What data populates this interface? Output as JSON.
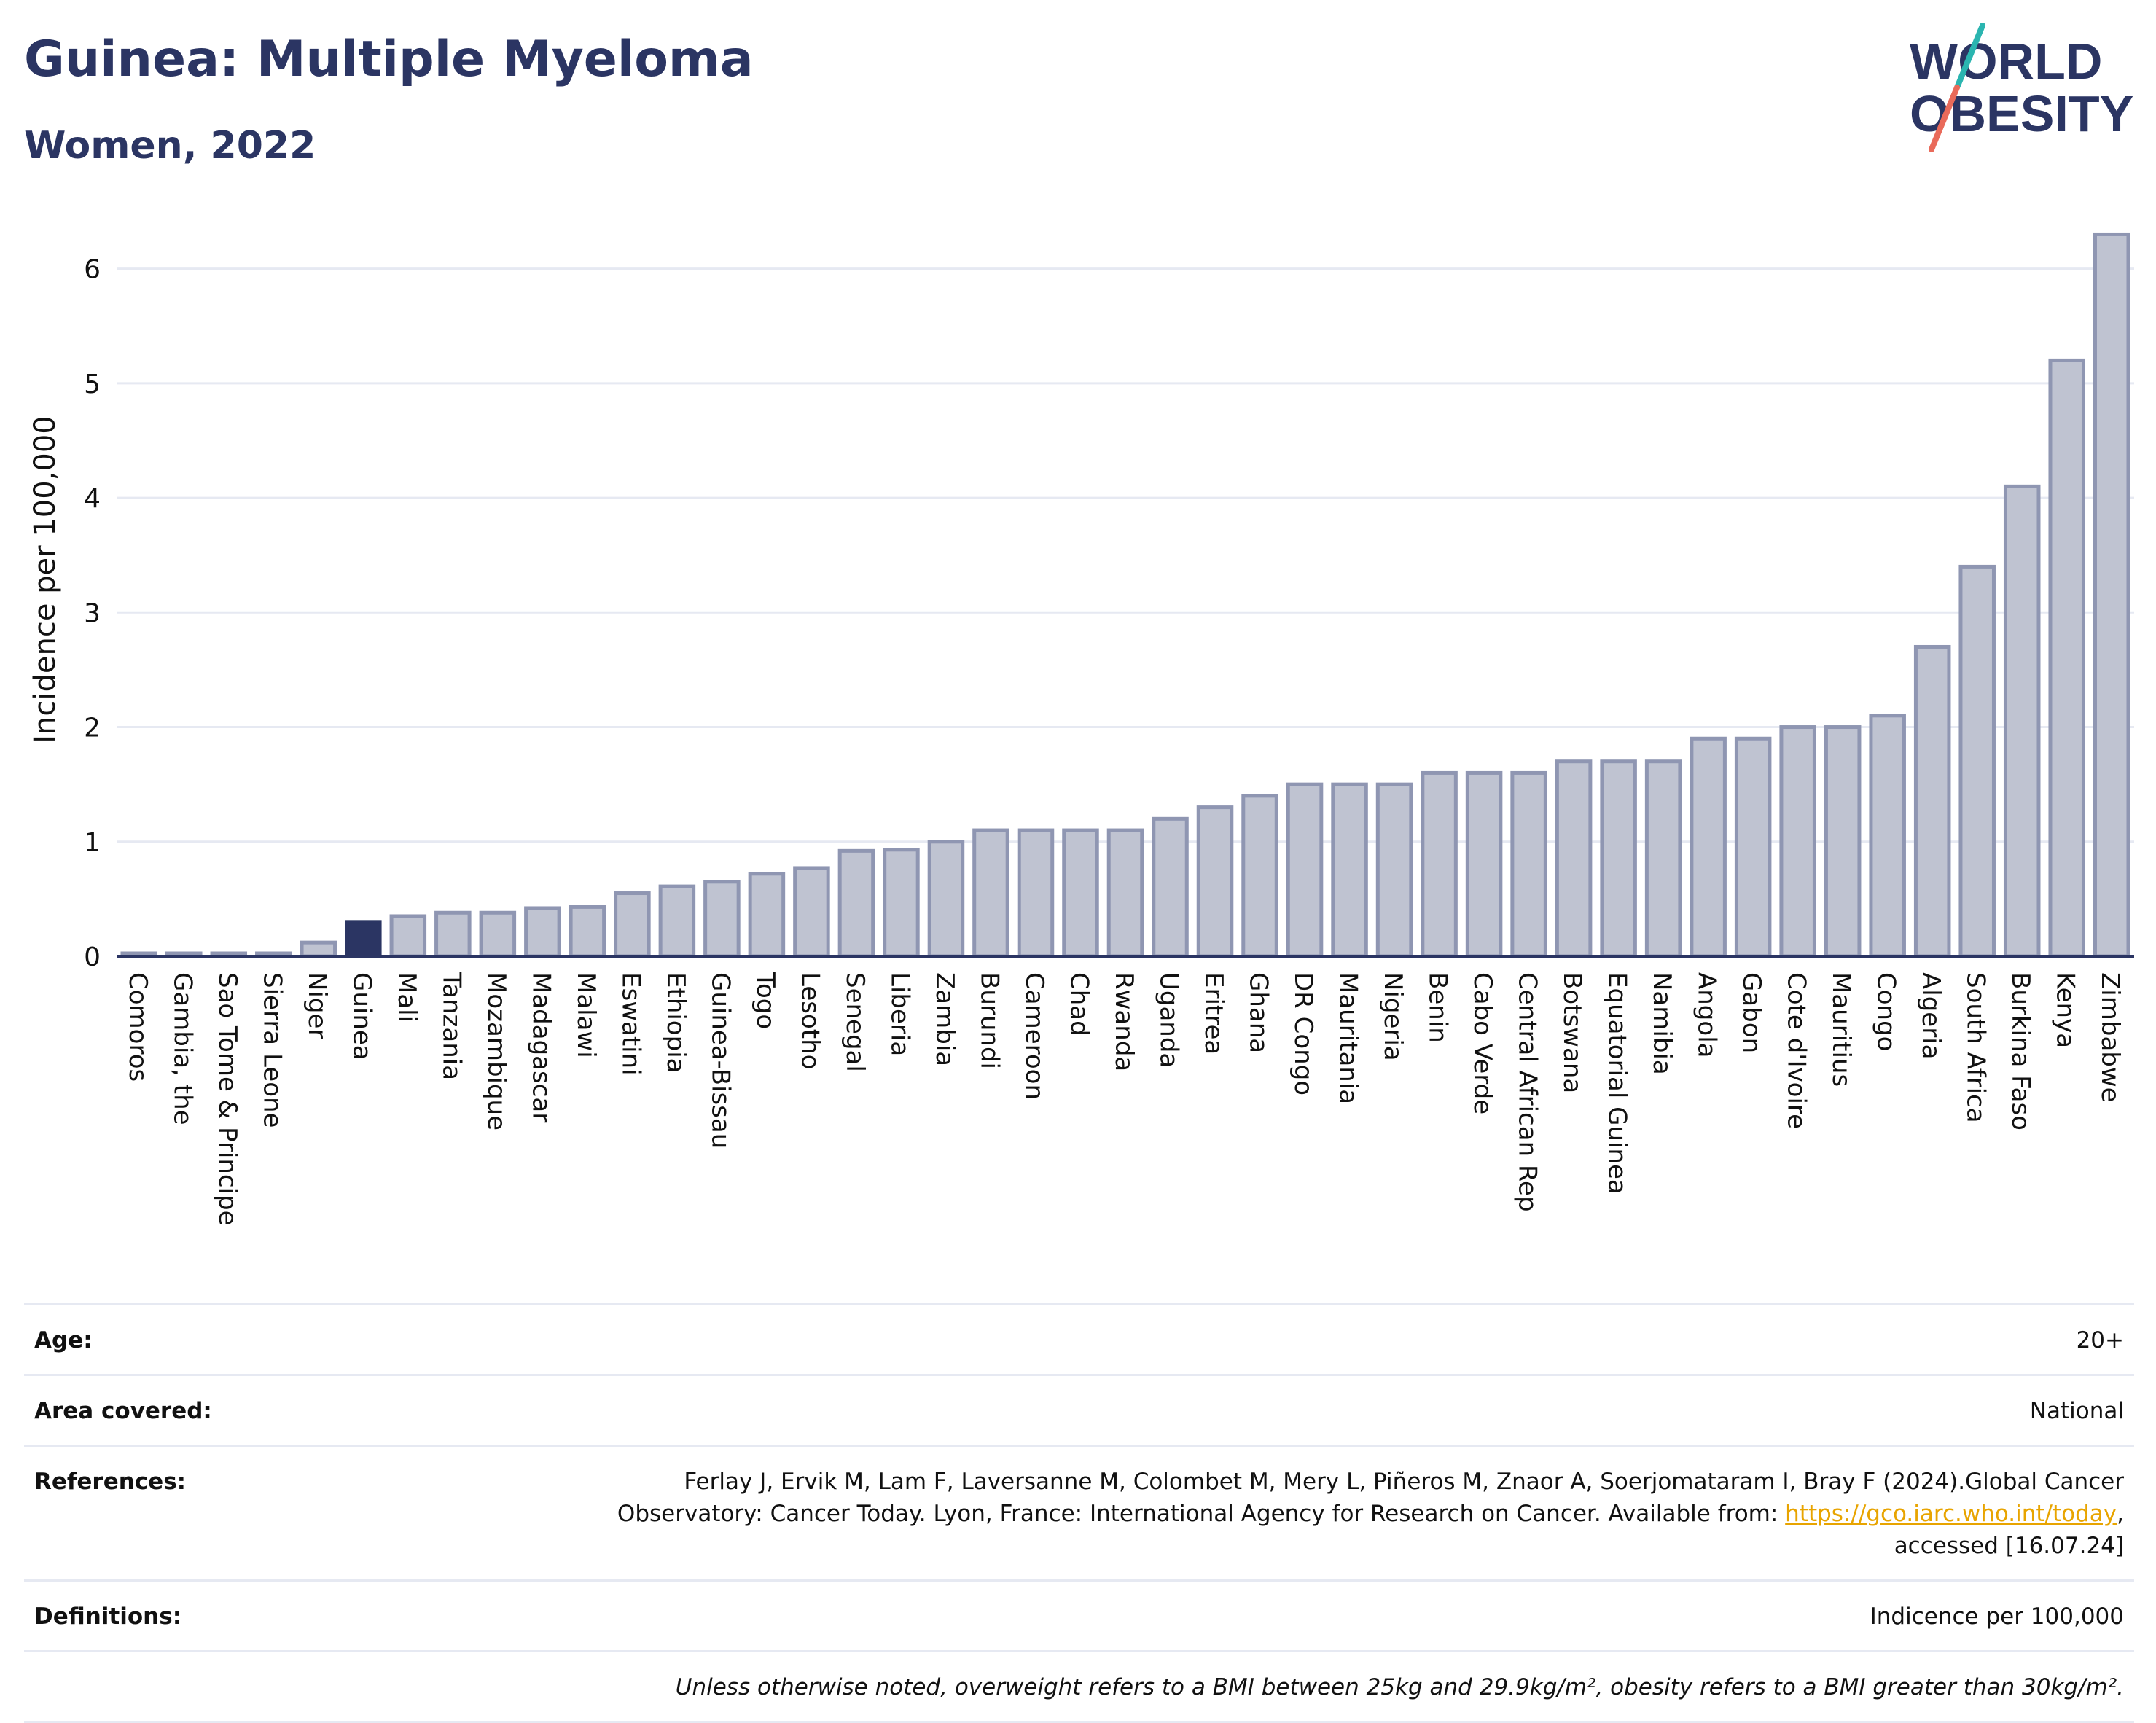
{
  "header": {
    "title": "Guinea: Multiple Myeloma",
    "subtitle": "Women, 2022"
  },
  "logo": {
    "line1": "WORLD",
    "line2": "OBESITY",
    "colors": {
      "text": "#2b3563",
      "slash_top": "#2bb5b0",
      "slash_bottom": "#e96a5a"
    }
  },
  "chart_data": {
    "type": "bar",
    "ylabel": "Incidence per 100,000",
    "xlabel": "",
    "ylim": [
      0,
      6.5
    ],
    "yticks": [
      0,
      1,
      2,
      3,
      4,
      5,
      6
    ],
    "grid": true,
    "highlight": "Guinea",
    "colors": {
      "bar": "#bfc3d1",
      "bar_border": "#8f96b2",
      "highlight": "#2b3563",
      "grid": "#e6e9f2",
      "axis": "#2b3563"
    },
    "categories": [
      "Comoros",
      "Gambia, the",
      "Sao Tome & Principe",
      "Sierra Leone",
      "Niger",
      "Guinea",
      "Mali",
      "Tanzania",
      "Mozambique",
      "Madagascar",
      "Malawi",
      "Eswatini",
      "Ethiopia",
      "Guinea-Bissau",
      "Togo",
      "Lesotho",
      "Senegal",
      "Liberia",
      "Zambia",
      "Burundi",
      "Cameroon",
      "Chad",
      "Rwanda",
      "Uganda",
      "Eritrea",
      "Ghana",
      "DR Congo",
      "Mauritania",
      "Nigeria",
      "Benin",
      "Cabo Verde",
      "Central African Rep",
      "Botswana",
      "Equatorial Guinea",
      "Namibia",
      "Angola",
      "Gabon",
      "Cote d'Ivoire",
      "Mauritius",
      "Congo",
      "Algeria",
      "South Africa",
      "Burkina Faso",
      "Kenya",
      "Zimbabwe"
    ],
    "values": [
      0.02,
      0.02,
      0.02,
      0.02,
      0.12,
      0.3,
      0.35,
      0.38,
      0.38,
      0.42,
      0.43,
      0.55,
      0.61,
      0.65,
      0.72,
      0.77,
      0.92,
      0.93,
      1.0,
      1.1,
      1.1,
      1.1,
      1.1,
      1.2,
      1.3,
      1.4,
      1.5,
      1.5,
      1.5,
      1.6,
      1.6,
      1.6,
      1.7,
      1.7,
      1.7,
      1.9,
      1.9,
      2.0,
      2.0,
      2.1,
      2.7,
      3.4,
      4.1,
      5.2,
      6.3
    ]
  },
  "info": {
    "age_label": "Age:",
    "age_value": "20+",
    "area_label": "Area covered:",
    "area_value": "National",
    "references_label": "References:",
    "references_text": "Ferlay J, Ervik M, Lam F, Laversanne M, Colombet M, Mery L, Piñeros M, Znaor A, Soerjomataram I, Bray F (2024).Global Cancer Observatory: Cancer Today. Lyon, France: International Agency for Research on Cancer. Available from:",
    "references_link": "https://gco.iarc.who.int/today",
    "references_suffix": ", accessed [16.07.24]",
    "definitions_label": "Definitions:",
    "definitions_value": "Indicence per 100,000",
    "note": "Unless otherwise noted, overweight refers to a BMI between 25kg and 29.9kg/m², obesity refers to a BMI greater than 30kg/m²."
  }
}
